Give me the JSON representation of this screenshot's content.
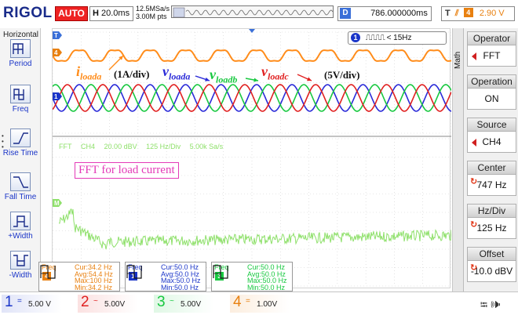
{
  "top": {
    "brand": "RIGOL",
    "run_mode": "AUTO",
    "timebase_label": "H",
    "timebase": "20.0ms",
    "sample_rate": "12.5MSa/s",
    "memory_depth": "3.00M pts",
    "delay_label": "D",
    "delay": "786.000000ms",
    "trigger_label": "T",
    "trigger_channel": "4",
    "trigger_level": "2.90 V"
  },
  "left_panel": {
    "title": "Horizontal",
    "keys": [
      {
        "label": "Period",
        "icon": "period-icon"
      },
      {
        "label": "Freq",
        "icon": "freq-icon"
      },
      {
        "label": "Rise Time",
        "icon": "rise-time-icon"
      },
      {
        "label": "Fall Time",
        "icon": "fall-time-icon"
      },
      {
        "label": "+Width",
        "icon": "pos-width-icon"
      },
      {
        "label": "-Width",
        "icon": "neg-width-icon"
      }
    ]
  },
  "right_panel": {
    "tab": "Math",
    "items": [
      {
        "label": "Operator",
        "value": "FFT"
      },
      {
        "label": "Operation",
        "value": "ON"
      },
      {
        "label": "Source",
        "value": "CH4"
      },
      {
        "label": "Center",
        "value": "747 Hz"
      },
      {
        "label": "Hz/Div",
        "value": "125 Hz"
      },
      {
        "label": "Offset",
        "value": "-10.0 dBV"
      }
    ]
  },
  "screen": {
    "counter_channel": "1",
    "counter_value": "< 15Hz",
    "trace_markers": [
      "T",
      "4",
      "1",
      "M"
    ],
    "annotation_current_symbol": "i",
    "annotation_current_sub": "loada",
    "annotation_current_scale": "(1A/div)",
    "annotation_voltage_a_symbol": "v",
    "annotation_voltage_a_sub": "loada",
    "annotation_voltage_b_symbol": "v",
    "annotation_voltage_b_sub": "loadb",
    "annotation_voltage_c_symbol": "v",
    "annotation_voltage_c_sub": "loadc",
    "annotation_voltage_scale": "(5V/div)",
    "fft_readout": {
      "title": "FFT",
      "channel": "CH4",
      "scale": "20.00 dBV",
      "span": "125 Hz/Div",
      "rate": "5.00k Sa/s"
    },
    "fft_caption": "FFT for load current"
  },
  "measurements": [
    {
      "type": "Freq",
      "channel": "4",
      "color": "#e88010",
      "cur": "Cur:34.2 Hz",
      "avg": "Avg:54.4 Hz",
      "max": "Max:100 Hz",
      "min": "Min:34.2 Hz"
    },
    {
      "type": "Freq",
      "channel": "1",
      "color": "#1a35c8",
      "cur": "Cur:50.0 Hz",
      "avg": "Avg:50.0 Hz",
      "max": "Max:50.0 Hz",
      "min": "Min:50.0 Hz"
    },
    {
      "type": "Freq",
      "channel": "3",
      "color": "#18c840",
      "cur": "Cur:50.0 Hz",
      "avg": "Avg:50.0 Hz",
      "max": "Max:50.0 Hz",
      "min": "Min:50.0 Hz"
    }
  ],
  "channels": [
    {
      "num": "1",
      "coupling": "=",
      "scale": "5.00 V",
      "color": "#1a35c8"
    },
    {
      "num": "2",
      "coupling": "~",
      "scale": "5.00V",
      "color": "#e02020"
    },
    {
      "num": "3",
      "coupling": "~",
      "scale": "5.00V",
      "color": "#18c840"
    },
    {
      "num": "4",
      "coupling": "=",
      "scale": "1.00V",
      "color": "#e88010"
    }
  ],
  "colors": {
    "current": "#ff8c1a",
    "phase_a": "#2a2ad8",
    "phase_b": "#18c840",
    "phase_c": "#e02020",
    "fft": "#8ee06a",
    "caption": "#e43ab8"
  }
}
